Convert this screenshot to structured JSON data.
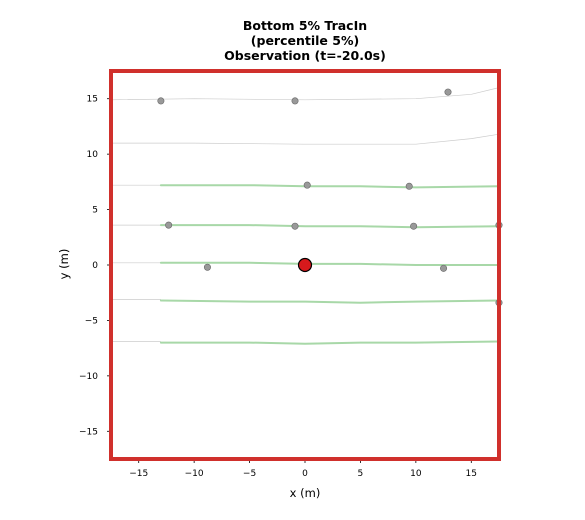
{
  "chart_data": {
    "type": "scatter",
    "title_lines": [
      "Bottom 5% TracIn",
      "(percentile 5%)",
      "Observation (t=-20.0s)"
    ],
    "xlabel": "x (m)",
    "ylabel": "y (m)",
    "xlim": [
      -17.5,
      17.5
    ],
    "ylim": [
      -17.5,
      17.5
    ],
    "xticks": [
      -15,
      -10,
      -5,
      0,
      5,
      10,
      15
    ],
    "yticks": [
      -15,
      -10,
      -5,
      0,
      5,
      10,
      15
    ],
    "xtick_labels": [
      "−15",
      "−10",
      "−5",
      "0",
      "5",
      "10",
      "15"
    ],
    "ytick_labels": [
      "−15",
      "−10",
      "−5",
      "0",
      "5",
      "10",
      "15"
    ],
    "grid": false,
    "frame_color": "#d0302c",
    "ego_color": "#d7191c",
    "agent_color": "#999999",
    "lane_color": "#a8d8a8",
    "road_line_color": "#cccccc",
    "road_lines": [
      {
        "x": [
          -17.5,
          -10,
          0,
          10,
          15,
          17.5
        ],
        "y": [
          14.9,
          15.0,
          14.9,
          15.0,
          15.4,
          16.0
        ]
      },
      {
        "x": [
          -17.5,
          -10,
          0,
          10,
          15,
          17.5
        ],
        "y": [
          11.0,
          11.0,
          10.9,
          10.9,
          11.4,
          11.8
        ]
      },
      {
        "x": [
          -17.5,
          -13
        ],
        "y": [
          7.2,
          7.2
        ]
      },
      {
        "x": [
          -17.5,
          -13
        ],
        "y": [
          3.6,
          3.6
        ]
      },
      {
        "x": [
          -17.5,
          -13
        ],
        "y": [
          0.2,
          0.2
        ]
      },
      {
        "x": [
          -17.5,
          -13
        ],
        "y": [
          -3.1,
          -3.1
        ]
      },
      {
        "x": [
          -17.5,
          -13
        ],
        "y": [
          -6.9,
          -6.9
        ]
      }
    ],
    "lanes": [
      {
        "x": [
          -13,
          -5,
          0,
          5,
          10,
          17.5
        ],
        "y": [
          7.2,
          7.2,
          7.1,
          7.1,
          7.0,
          7.1
        ]
      },
      {
        "x": [
          -13,
          -5,
          0,
          5,
          10,
          17.5
        ],
        "y": [
          3.6,
          3.6,
          3.5,
          3.5,
          3.4,
          3.5
        ]
      },
      {
        "x": [
          -13,
          -5,
          0,
          5,
          10,
          17.5
        ],
        "y": [
          0.2,
          0.2,
          0.1,
          0.1,
          0.0,
          0.0
        ]
      },
      {
        "x": [
          -13,
          -5,
          0,
          5,
          10,
          17.5
        ],
        "y": [
          -3.2,
          -3.3,
          -3.3,
          -3.4,
          -3.3,
          -3.2
        ]
      },
      {
        "x": [
          -13,
          -5,
          0,
          5,
          10,
          17.5
        ],
        "y": [
          -7.0,
          -7.0,
          -7.1,
          -7.0,
          -7.0,
          -6.9
        ]
      }
    ],
    "agents": [
      {
        "x": -13.0,
        "y": 14.8
      },
      {
        "x": -0.9,
        "y": 14.8
      },
      {
        "x": 12.9,
        "y": 15.6
      },
      {
        "x": 0.2,
        "y": 7.2
      },
      {
        "x": 9.4,
        "y": 7.1
      },
      {
        "x": -12.3,
        "y": 3.6
      },
      {
        "x": -0.9,
        "y": 3.5
      },
      {
        "x": 9.8,
        "y": 3.5
      },
      {
        "x": 17.5,
        "y": 3.6
      },
      {
        "x": -8.8,
        "y": -0.2
      },
      {
        "x": 12.5,
        "y": -0.3
      },
      {
        "x": 17.5,
        "y": -3.4
      }
    ],
    "ego": {
      "x": 0.0,
      "y": 0.0
    }
  }
}
